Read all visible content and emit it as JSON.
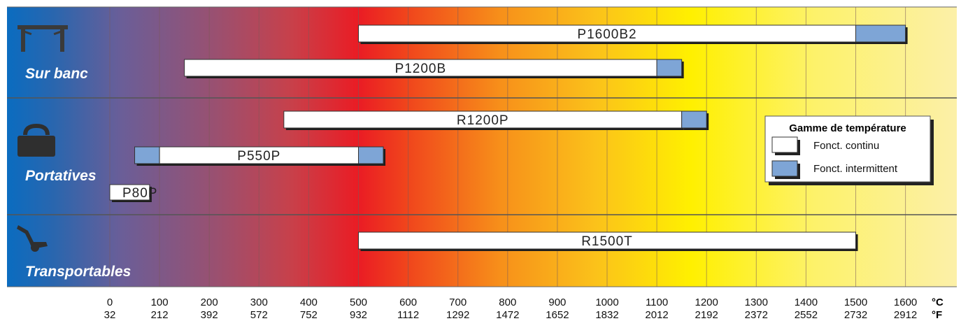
{
  "chart_data": {
    "type": "bar",
    "subtype": "range-gantt",
    "title": "",
    "x_unit_primary": "°C",
    "x_unit_secondary": "°F",
    "xlim": [
      -200,
      1700
    ],
    "ticks_c": [
      "0",
      "100",
      "200",
      "300",
      "400",
      "500",
      "600",
      "700",
      "800",
      "900",
      "1000",
      "1100",
      "1200",
      "1300",
      "1400",
      "1500",
      "1600"
    ],
    "ticks_f": [
      "32",
      "212",
      "392",
      "572",
      "752",
      "932",
      "1112",
      "1292",
      "1472",
      "1652",
      "1832",
      "2012",
      "2192",
      "2372",
      "2552",
      "2732",
      "2912"
    ],
    "tick_values": [
      0,
      100,
      200,
      300,
      400,
      500,
      600,
      700,
      800,
      900,
      1000,
      1100,
      1200,
      1300,
      1400,
      1500,
      1600
    ],
    "groups": [
      {
        "label": "Sur banc",
        "icon": "bench-icon"
      },
      {
        "label": "Portatives",
        "icon": "case-icon"
      },
      {
        "label": "Transportables",
        "icon": "hand-truck-icon"
      }
    ],
    "bars": [
      {
        "label": "P1600B2",
        "group": 0,
        "continuous": [
          500,
          1500
        ],
        "intermittent": [
          1500,
          1600
        ]
      },
      {
        "label": "P1200B",
        "group": 0,
        "continuous": [
          150,
          1100
        ],
        "intermittent": [
          1100,
          1150
        ]
      },
      {
        "label": "R1200P",
        "group": 1,
        "continuous": [
          350,
          1150
        ],
        "intermittent": [
          1150,
          1200
        ]
      },
      {
        "label": "P550P",
        "group": 1,
        "continuous": [
          100,
          500
        ],
        "intermittent_low": [
          50,
          100
        ],
        "intermittent": [
          500,
          550
        ]
      },
      {
        "label": "P80P",
        "group": 1,
        "continuous": [
          0,
          80
        ],
        "intermittent": null
      },
      {
        "label": "R1500T",
        "group": 2,
        "continuous": [
          500,
          1500
        ],
        "intermittent": null
      }
    ],
    "legend": {
      "title": "Gamme de température",
      "items": [
        {
          "label": "Fonct. continu",
          "color": "#ffffff"
        },
        {
          "label": "Fonct. intermittent",
          "color": "#7ea5d6"
        }
      ],
      "placement": "right"
    },
    "colors": {
      "continuous": "#ffffff",
      "intermittent": "#7ea5d6",
      "outline": "#333333"
    }
  }
}
